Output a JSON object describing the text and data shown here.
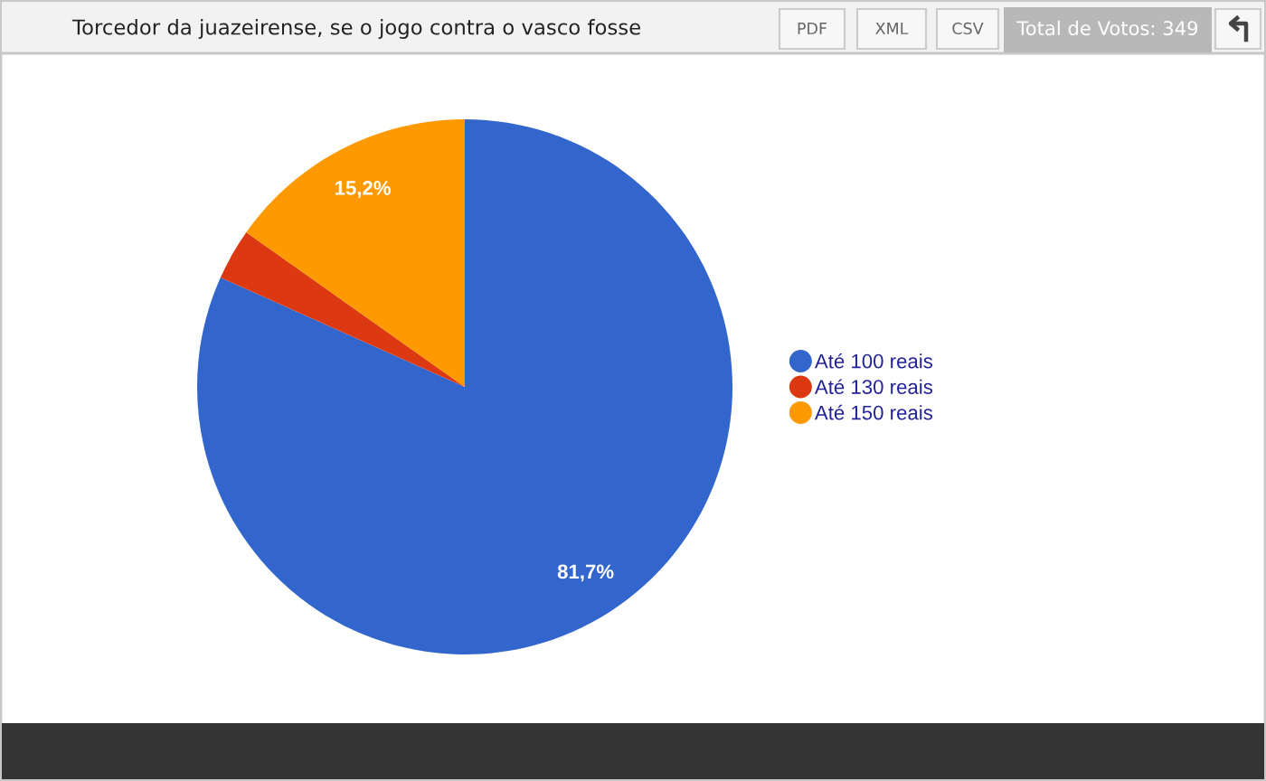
{
  "chart_data": {
    "type": "pie",
    "title": "Torcedor da juazeirense, se o jogo contra o vasco fosse",
    "categories": [
      "Até 100 reais",
      "Até 130 reais",
      "Até 150 reais"
    ],
    "values": [
      81.7,
      3.1,
      15.2
    ],
    "colors": [
      "#3366cc",
      "#dc3912",
      "#ff9900"
    ],
    "value_labels": [
      "81,7%",
      null,
      "15,2%"
    ],
    "legend": "right",
    "annotations": [
      "PDF",
      "XML",
      "CSV",
      "Total de Votos: 349"
    ]
  }
}
